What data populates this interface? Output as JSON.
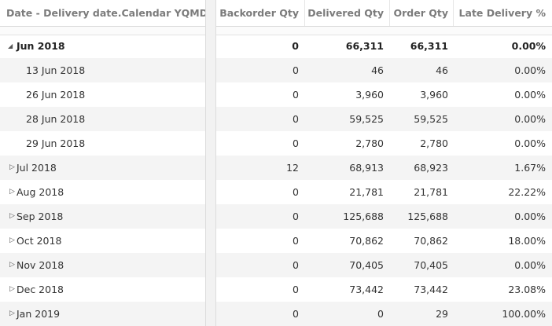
{
  "header": {
    "col_date": "Date - Delivery date.Calendar YQMD",
    "col_backorder": "Backorder Qty",
    "col_delivered": "Delivered Qty",
    "col_order": "Order Qty",
    "col_late": "Late Delivery %"
  },
  "icons": {
    "expanded": "triangle-down-icon",
    "collapsed": "triangle-right-icon",
    "expanded_glyph": "◢",
    "collapsed_glyph": "▷"
  },
  "rows": [
    {
      "label": "Jun 2018",
      "backorder": "0",
      "delivered": "66,311",
      "order": "66,311",
      "late": "0.00%",
      "level": 0,
      "state": "expanded",
      "glyph": "◢"
    },
    {
      "label": "13 Jun 2018",
      "backorder": "0",
      "delivered": "46",
      "order": "46",
      "late": "0.00%",
      "level": 1,
      "state": "leaf",
      "glyph": ""
    },
    {
      "label": "26 Jun 2018",
      "backorder": "0",
      "delivered": "3,960",
      "order": "3,960",
      "late": "0.00%",
      "level": 1,
      "state": "leaf",
      "glyph": ""
    },
    {
      "label": "28 Jun 2018",
      "backorder": "0",
      "delivered": "59,525",
      "order": "59,525",
      "late": "0.00%",
      "level": 1,
      "state": "leaf",
      "glyph": ""
    },
    {
      "label": "29 Jun 2018",
      "backorder": "0",
      "delivered": "2,780",
      "order": "2,780",
      "late": "0.00%",
      "level": 1,
      "state": "leaf",
      "glyph": ""
    },
    {
      "label": "Jul 2018",
      "backorder": "12",
      "delivered": "68,913",
      "order": "68,923",
      "late": "1.67%",
      "level": 0,
      "state": "collapsed",
      "glyph": "▷"
    },
    {
      "label": "Aug 2018",
      "backorder": "0",
      "delivered": "21,781",
      "order": "21,781",
      "late": "22.22%",
      "level": 0,
      "state": "collapsed",
      "glyph": "▷"
    },
    {
      "label": "Sep 2018",
      "backorder": "0",
      "delivered": "125,688",
      "order": "125,688",
      "late": "0.00%",
      "level": 0,
      "state": "collapsed",
      "glyph": "▷"
    },
    {
      "label": "Oct 2018",
      "backorder": "0",
      "delivered": "70,862",
      "order": "70,862",
      "late": "18.00%",
      "level": 0,
      "state": "collapsed",
      "glyph": "▷"
    },
    {
      "label": "Nov 2018",
      "backorder": "0",
      "delivered": "70,405",
      "order": "70,405",
      "late": "0.00%",
      "level": 0,
      "state": "collapsed",
      "glyph": "▷"
    },
    {
      "label": "Dec 2018",
      "backorder": "0",
      "delivered": "73,442",
      "order": "73,442",
      "late": "23.08%",
      "level": 0,
      "state": "collapsed",
      "glyph": "▷"
    },
    {
      "label": "Jan 2019",
      "backorder": "0",
      "delivered": "0",
      "order": "29",
      "late": "100.00%",
      "level": 0,
      "state": "collapsed",
      "glyph": "▷"
    }
  ]
}
